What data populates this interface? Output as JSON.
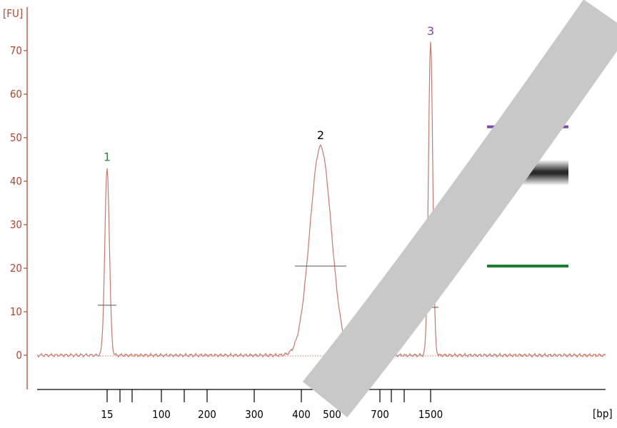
{
  "chart_data": {
    "type": "line",
    "y_unit": "[FU]",
    "x_unit": "[bp]",
    "ylim": [
      -8,
      78
    ],
    "y_ticks": [
      0,
      10,
      20,
      30,
      40,
      50,
      60,
      70
    ],
    "y_tick_labels": [
      "0",
      "10",
      "20",
      "30",
      "40",
      "50",
      "60",
      "70"
    ],
    "x_ticks": [
      {
        "bp": 15,
        "label": "15"
      },
      {
        "bp": 25,
        "label": ""
      },
      {
        "bp": 35,
        "label": ""
      },
      {
        "bp": 100,
        "label": "100"
      },
      {
        "bp": 150,
        "label": ""
      },
      {
        "bp": 200,
        "label": "200"
      },
      {
        "bp": 300,
        "label": "300"
      },
      {
        "bp": 400,
        "label": "400"
      },
      {
        "bp": 500,
        "label": "500"
      },
      {
        "bp": 700,
        "label": "700"
      },
      {
        "bp": 850,
        "label": ""
      },
      {
        "bp": 1000,
        "label": ""
      },
      {
        "bp": 1500,
        "label": "1500"
      }
    ],
    "grid": false,
    "series": [
      {
        "color": "#c8796a",
        "peaks": [
          {
            "label": "1",
            "bp": 15,
            "fu": 43,
            "half_height": 11.5,
            "label_color": "#3a8a3a"
          },
          {
            "label": "2",
            "bp": 460,
            "fu": 48,
            "half_height": 20.5,
            "label_color": "#000000"
          },
          {
            "label": "3",
            "bp": 1500,
            "fu": 72,
            "half_height": 11,
            "label_color": "#8a3fb0"
          }
        ]
      }
    ],
    "markers": [
      {
        "color": "#7b4ea8",
        "fu": 52.5
      },
      {
        "color": "#1a7a2e",
        "fu": 20.5
      }
    ],
    "colors": {
      "axis": "#b5472e",
      "trace": "#c8796a",
      "watermark": "#c8c8c8"
    }
  }
}
